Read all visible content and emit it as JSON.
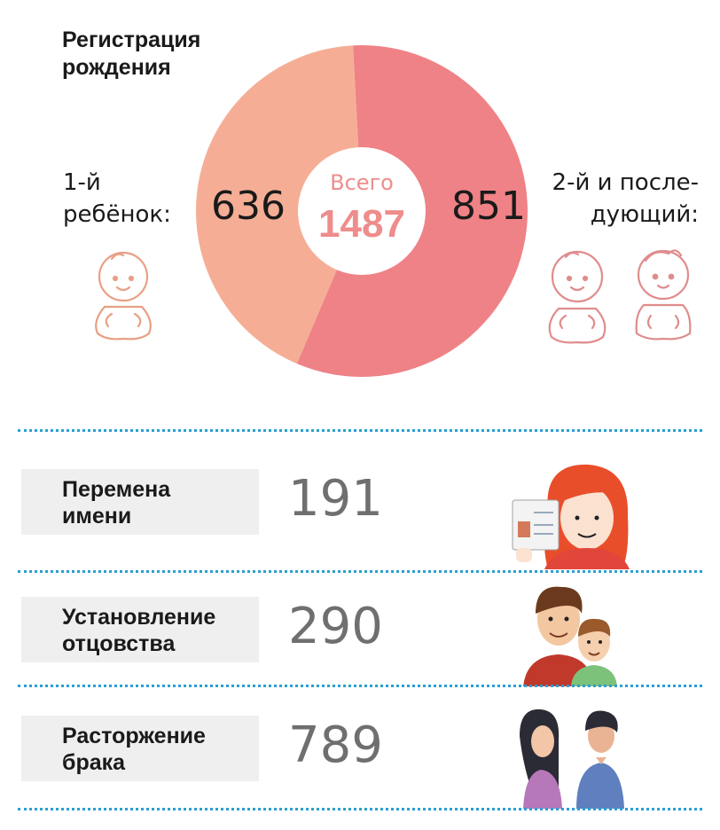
{
  "chart_data": {
    "type": "pie",
    "title": "Регистрация рождения",
    "center_label": "Всего",
    "center_value": "1487",
    "slices": [
      {
        "name": "1-й ребёнок:",
        "value": 636,
        "color": "#f5ae95"
      },
      {
        "name": "2-й и после-дующий:",
        "value": 851,
        "color": "#ef8286"
      }
    ],
    "left_label_lines": [
      "1-й",
      "ребёнок:"
    ],
    "right_label_lines": [
      "2-й и после-",
      "дующий:"
    ]
  },
  "stats": [
    {
      "label_lines": [
        "Перемена",
        "имени"
      ],
      "value": "191",
      "icon": "woman-with-passport-icon"
    },
    {
      "label_lines": [
        "Установление",
        "отцовства"
      ],
      "value": "290",
      "icon": "father-and-son-icon"
    },
    {
      "label_lines": [
        "Расторжение",
        "брака"
      ],
      "value": "789",
      "icon": "divorced-couple-icon"
    }
  ],
  "colors": {
    "first_child": "#f5ae95",
    "second_child": "#ef8286",
    "center_text": "#ef8c8c",
    "divider": "#2b9fd2",
    "stat_box": "#efefef",
    "stat_value": "#6f6f6f"
  }
}
